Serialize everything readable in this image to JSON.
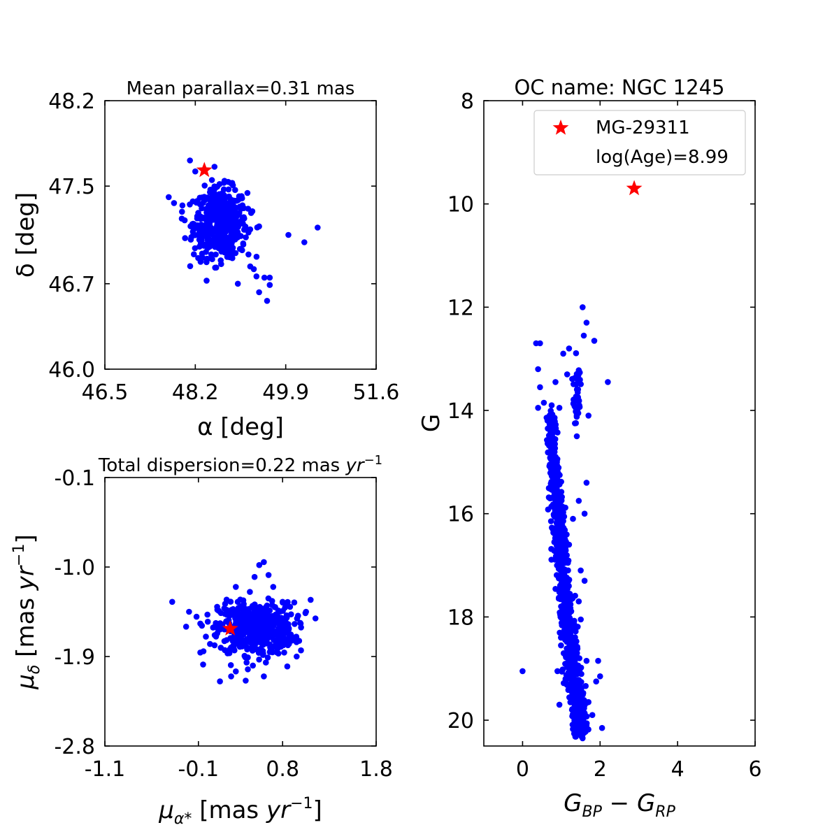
{
  "colors": {
    "points": "#0000ff",
    "star": "#ff0000"
  },
  "chart_data": [
    {
      "id": "sky",
      "type": "scatter",
      "title": "Mean parallax=0.31 mas",
      "xlabel": "α [deg]",
      "ylabel": "δ [deg]",
      "xlim": [
        46.5,
        51.6
      ],
      "ylim": [
        46.0,
        48.2
      ],
      "xticks": [
        46.5,
        48.2,
        49.9,
        51.6
      ],
      "xtick_labels": [
        "46.5",
        "48.2",
        "49.9",
        "51.6"
      ],
      "yticks": [
        46.0,
        46.7,
        47.5,
        48.2
      ],
      "ytick_labels": [
        "46.0",
        "46.7",
        "47.5",
        "48.2"
      ],
      "cluster": {
        "center": [
          48.67,
          47.2
        ],
        "spread": [
          0.25,
          0.14
        ],
        "n": 520
      },
      "outliers": [
        [
          47.7,
          47.41
        ],
        [
          47.95,
          47.29
        ],
        [
          48.0,
          47.22
        ],
        [
          48.2,
          47.62
        ],
        [
          48.1,
          47.71
        ],
        [
          49.15,
          47.08
        ],
        [
          49.1,
          47.03
        ],
        [
          49.2,
          46.94
        ],
        [
          49.3,
          46.82
        ],
        [
          49.35,
          46.76
        ],
        [
          49.5,
          46.75
        ],
        [
          49.6,
          46.75
        ],
        [
          49.6,
          46.69
        ],
        [
          49.55,
          46.56
        ],
        [
          49.4,
          46.63
        ],
        [
          49.0,
          46.7
        ],
        [
          48.8,
          46.92
        ],
        [
          49.95,
          47.1
        ],
        [
          50.25,
          47.04
        ],
        [
          50.5,
          47.16
        ],
        [
          49.25,
          47.28
        ],
        [
          49.4,
          47.17
        ],
        [
          48.3,
          46.88
        ],
        [
          48.5,
          46.94
        ]
      ],
      "star": [
        48.37,
        47.63
      ],
      "grid": false
    },
    {
      "id": "pm",
      "type": "scatter",
      "title": "Total dispersion=0.22 mas ",
      "title_math": "yr",
      "title_sup": "−1",
      "xlabel": "μ",
      "xlabel_sub": "α*",
      "xlabel_rest": " [mas ",
      "xlabel_math": "yr",
      "xlabel_sup": "−1",
      "xlabel_close": "]",
      "ylabel": "μ",
      "ylabel_sub": "δ",
      "ylabel_rest": " [mas ",
      "ylabel_math": "yr",
      "ylabel_sup": "−1",
      "ylabel_close": "]",
      "xlim": [
        -1.1,
        1.8
      ],
      "ylim": [
        -2.8,
        -0.1
      ],
      "xticks": [
        -1.1,
        -0.1,
        0.8,
        1.8
      ],
      "xtick_labels": [
        "-1.1",
        "-0.1",
        "0.8",
        "1.8"
      ],
      "yticks": [
        -2.8,
        -1.9,
        -1.0,
        -0.1
      ],
      "ytick_labels": [
        "-2.8",
        "-1.9",
        "-1.0",
        "-0.1"
      ],
      "cluster": {
        "center": [
          0.52,
          -1.62
        ],
        "spread": [
          0.2,
          0.13
        ],
        "n": 560
      },
      "outliers": [
        [
          -0.38,
          -1.35
        ],
        [
          -0.2,
          -1.45
        ],
        [
          -0.12,
          -1.5
        ],
        [
          0.0,
          -1.55
        ],
        [
          0.1,
          -1.4
        ],
        [
          0.3,
          -1.2
        ],
        [
          0.32,
          -1.35
        ],
        [
          0.45,
          -1.25
        ],
        [
          0.5,
          -1.1
        ],
        [
          0.55,
          -0.98
        ],
        [
          0.6,
          -0.95
        ],
        [
          0.65,
          -1.08
        ],
        [
          0.7,
          -1.2
        ],
        [
          0.8,
          -1.35
        ],
        [
          0.88,
          -1.4
        ],
        [
          1.05,
          -1.45
        ],
        [
          1.1,
          -1.33
        ],
        [
          0.95,
          -1.9
        ],
        [
          0.85,
          -2.0
        ],
        [
          0.3,
          -2.05
        ],
        [
          0.25,
          -2.1
        ],
        [
          0.13,
          -2.15
        ],
        [
          -0.05,
          -1.98
        ],
        [
          -0.08,
          -1.86
        ],
        [
          -0.02,
          -1.7
        ],
        [
          0.6,
          -2.1
        ]
      ],
      "star": [
        0.24,
        -1.62
      ],
      "grid": false
    },
    {
      "id": "cmd",
      "type": "scatter",
      "title": "OC name: NGC 1245",
      "xlabel": "G",
      "xlabel_sub1": "BP",
      "xlabel_mid": " − G",
      "xlabel_sub2": "RP",
      "ylabel": "G",
      "xlim": [
        -1.0,
        6.0
      ],
      "ylim": [
        20.5,
        8.0
      ],
      "y_inverted": true,
      "xticks": [
        0,
        2,
        4,
        6
      ],
      "xtick_labels": [
        "0",
        "2",
        "4",
        "6"
      ],
      "yticks": [
        8,
        10,
        12,
        14,
        16,
        18,
        20
      ],
      "ytick_labels": [
        "8",
        "10",
        "12",
        "14",
        "16",
        "18",
        "20"
      ],
      "main_sequence": [
        [
          14.0,
          0.75
        ],
        [
          15.0,
          0.78
        ],
        [
          16.0,
          0.92
        ],
        [
          17.0,
          1.02
        ],
        [
          18.0,
          1.15
        ],
        [
          19.0,
          1.3
        ],
        [
          20.3,
          1.5
        ]
      ],
      "red_clump": {
        "center": [
          1.4,
          13.7
        ],
        "spread": [
          0.06,
          0.35
        ],
        "n": 40
      },
      "outliers": [
        [
          0.35,
          12.7
        ],
        [
          0.45,
          12.7
        ],
        [
          0.4,
          13.2
        ],
        [
          0.45,
          13.55
        ],
        [
          0.4,
          13.95
        ],
        [
          0.55,
          13.85
        ],
        [
          0.85,
          13.45
        ],
        [
          0.75,
          13.9
        ],
        [
          0.95,
          13.95
        ],
        [
          0.65,
          14.35
        ],
        [
          0.8,
          14.15
        ],
        [
          1.15,
          13.3
        ],
        [
          1.05,
          12.9
        ],
        [
          1.2,
          12.8
        ],
        [
          1.55,
          12.0
        ],
        [
          1.65,
          12.3
        ],
        [
          1.58,
          12.55
        ],
        [
          1.85,
          12.65
        ],
        [
          2.2,
          13.45
        ],
        [
          1.35,
          14.25
        ],
        [
          1.4,
          14.5
        ],
        [
          1.7,
          14.1
        ],
        [
          1.65,
          15.4
        ],
        [
          1.45,
          15.75
        ],
        [
          1.6,
          16.0
        ],
        [
          1.3,
          16.1
        ],
        [
          1.2,
          16.6
        ],
        [
          1.5,
          17.1
        ],
        [
          1.6,
          17.3
        ],
        [
          1.45,
          17.7
        ],
        [
          1.0,
          18.4
        ],
        [
          0.0,
          19.05
        ],
        [
          0.9,
          19.05
        ],
        [
          1.65,
          18.85
        ],
        [
          1.9,
          19.25
        ],
        [
          2.0,
          19.15
        ],
        [
          0.95,
          19.7
        ],
        [
          1.7,
          19.65
        ],
        [
          1.65,
          20.1
        ],
        [
          2.05,
          20.15
        ],
        [
          1.8,
          19.9
        ],
        [
          1.55,
          20.35
        ],
        [
          1.95,
          18.85
        ]
      ],
      "star": [
        2.88,
        9.7
      ],
      "legend": {
        "position": "top-right",
        "entries": [
          "MG-29311",
          "log(Age)=8.99"
        ]
      },
      "grid": false
    }
  ]
}
